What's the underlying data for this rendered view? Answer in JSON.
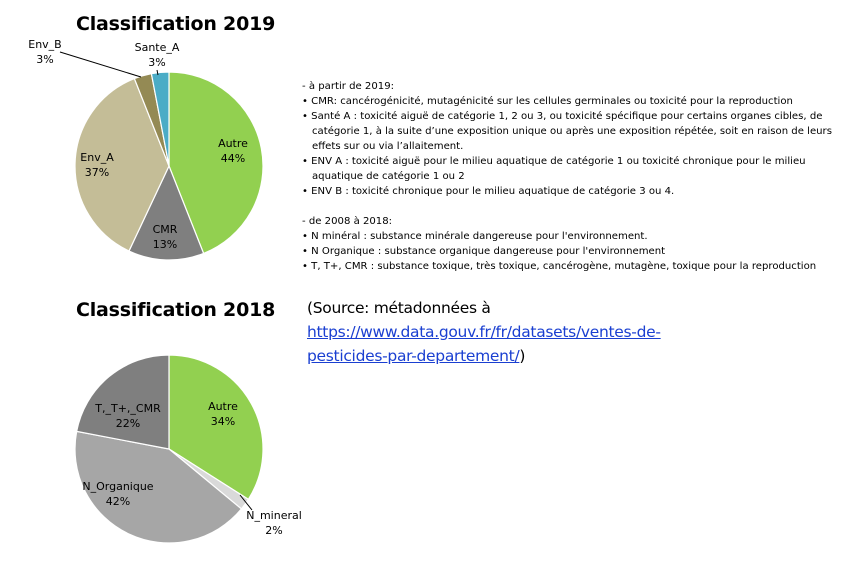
{
  "chart_data": [
    {
      "type": "pie",
      "title": "Classification 2019",
      "slices": [
        {
          "label": "Autre",
          "value": 44,
          "pct_label": "44%",
          "color": "#92d050"
        },
        {
          "label": "CMR",
          "value": 13,
          "pct_label": "13%",
          "color": "#7f7f7f"
        },
        {
          "label": "Env_A",
          "value": 37,
          "pct_label": "37%",
          "color": "#c4bd97"
        },
        {
          "label": "Env_B",
          "value": 3,
          "pct_label": "3%",
          "color": "#948a54"
        },
        {
          "label": "Sante_A",
          "value": 3,
          "pct_label": "3%",
          "color": "#4bacc6"
        }
      ]
    },
    {
      "type": "pie",
      "title": "Classification 2018",
      "slices": [
        {
          "label": "Autre",
          "value": 34,
          "pct_label": "34%",
          "color": "#92d050"
        },
        {
          "label": "N_mineral",
          "value": 2,
          "pct_label": "2%",
          "color": "#d9d9d9"
        },
        {
          "label": "N_Organique",
          "value": 42,
          "pct_label": "42%",
          "color": "#a6a6a6"
        },
        {
          "label": "T,_T+,_CMR",
          "value": 22,
          "pct_label": "22%",
          "color": "#7f7f7f"
        }
      ]
    }
  ],
  "notes": {
    "since_2019_header": "- à partir de 2019:",
    "cmr_line": "• CMR: cancérogénicité, mutagénicité sur les cellules germinales ou toxicité pour la reproduction",
    "sante_a_line1": "• Santé A : toxicité aiguë de catégorie 1, 2 ou 3, ou toxicité spécifique pour certains organes cibles, de",
    "sante_a_line2": "catégorie 1, à la suite d’une exposition unique ou après une exposition répétée, soit en raison de leurs",
    "sante_a_line3": "effets sur ou via l’allaitement.",
    "env_a_line1": "• ENV A : toxicité aiguë pour le milieu aquatique de catégorie 1 ou toxicité chronique pour le milieu",
    "env_a_line2": "aquatique de catégorie 1 ou 2",
    "env_b_line": "• ENV B : toxicité chronique pour le milieu aquatique de catégorie 3 ou 4.",
    "range_2008_header": "- de 2008 à 2018:",
    "n_mineral_line": "• N minéral : substance minérale dangereuse pour l'environnement.",
    "n_organique_line": "• N Organique : substance organique dangereuse pour l'environnement",
    "t_cmr_line": "• T, T+, CMR : substance toxique, très toxique, cancérogène, mutagène, toxique pour la reproduction"
  },
  "source": {
    "prefix": "(Source: métadonnées à",
    "link_line1": "https://www.data.gouv.fr/fr/datasets/ventes-de-",
    "link_line2": "pesticides-par-departement/",
    "suffix": ")"
  }
}
